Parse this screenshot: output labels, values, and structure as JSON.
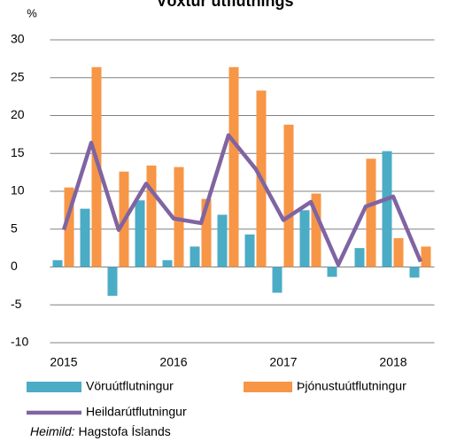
{
  "chart_data": {
    "type": "bar",
    "title": "Vöxtur útflutnings",
    "y_label": "%",
    "categories": [
      "2015",
      null,
      null,
      null,
      "2016",
      null,
      null,
      null,
      "2017",
      null,
      null,
      null,
      "2018",
      null
    ],
    "series": [
      {
        "name": "Vöruútflutningur",
        "color": "#4bacc6",
        "type": "bar",
        "values": [
          0.9,
          7.7,
          -3.8,
          8.8,
          0.9,
          2.7,
          6.9,
          4.3,
          -3.4,
          7.5,
          -1.3,
          2.5,
          15.3,
          -1.4
        ]
      },
      {
        "name": "Þjónustuútflutningur",
        "color": "#f79646",
        "type": "bar",
        "values": [
          10.5,
          26.4,
          12.6,
          13.4,
          13.2,
          9.0,
          26.4,
          23.3,
          18.8,
          9.7,
          0,
          14.3,
          3.8,
          2.7
        ]
      },
      {
        "name": "Heildarútflutningur",
        "color": "#8064a2",
        "type": "line",
        "values": [
          4.9,
          16.4,
          4.9,
          11.0,
          6.4,
          5.8,
          17.4,
          12.9,
          6.2,
          8.6,
          0.3,
          8.0,
          9.3,
          0.7
        ]
      }
    ],
    "ylim": [
      -10,
      30
    ],
    "yticks": [
      30,
      25,
      20,
      15,
      10,
      5,
      0,
      -5,
      -10
    ],
    "grid": true,
    "source_label": "Heimild:",
    "source": "Hagstofa Íslands"
  }
}
